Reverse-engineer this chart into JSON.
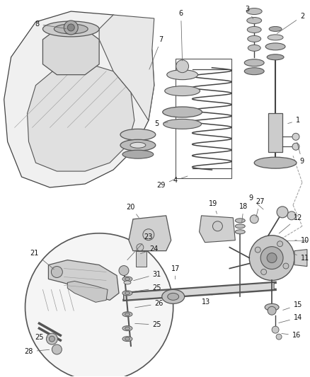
{
  "bg_color": "#ffffff",
  "fig_width": 4.38,
  "fig_height": 5.33,
  "dpi": 100,
  "line_color": "#444444",
  "light_gray": "#cccccc",
  "mid_gray": "#999999",
  "dark_gray": "#555555",
  "fill_light": "#e8e8e8",
  "fill_mid": "#d0d0d0",
  "fill_dark": "#aaaaaa"
}
